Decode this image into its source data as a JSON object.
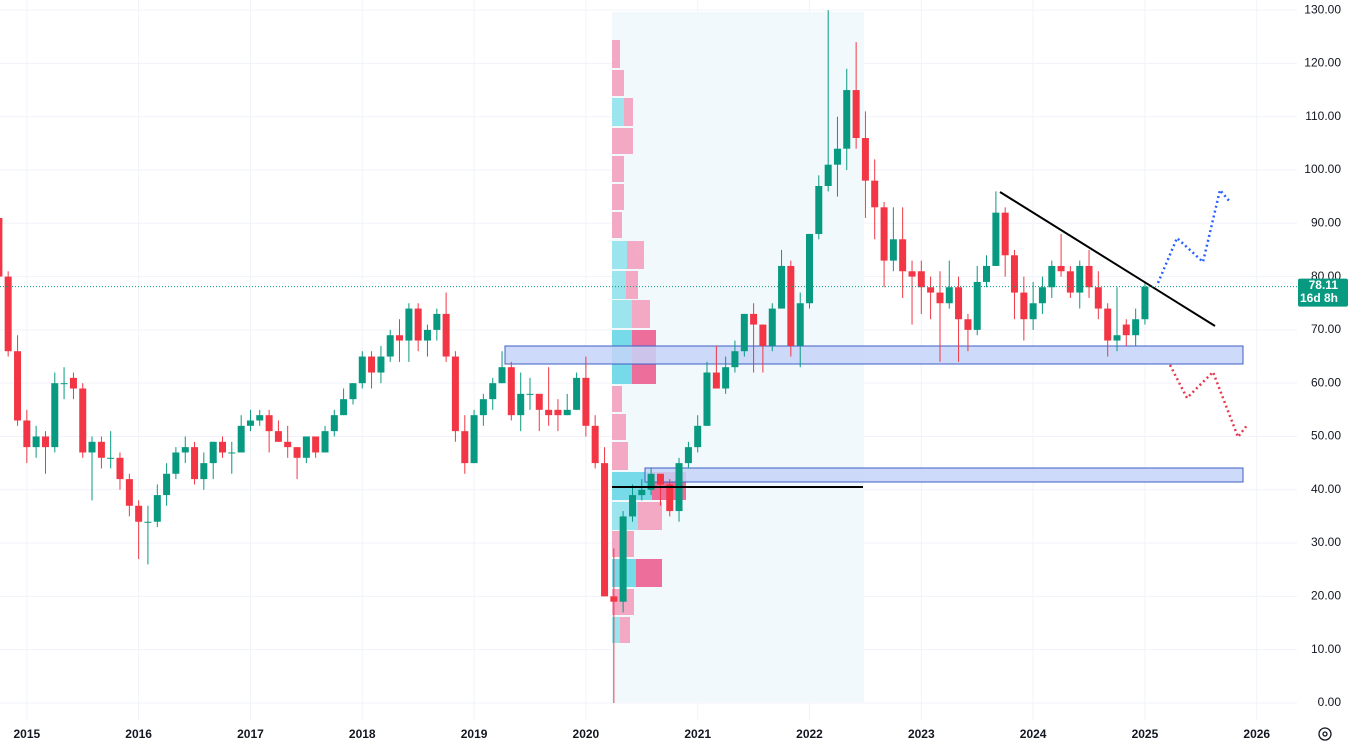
{
  "chart_data": {
    "type": "candlestick",
    "x": [
      2014.75,
      2014.833,
      2014.917,
      2015,
      2015.083,
      2015.167,
      2015.25,
      2015.333,
      2015.417,
      2015.5,
      2015.583,
      2015.667,
      2015.75,
      2015.833,
      2015.917,
      2016,
      2016.083,
      2016.167,
      2016.25,
      2016.333,
      2016.417,
      2016.5,
      2016.583,
      2016.667,
      2016.75,
      2016.833,
      2016.917,
      2017,
      2017.083,
      2017.167,
      2017.25,
      2017.333,
      2017.417,
      2017.5,
      2017.583,
      2017.667,
      2017.75,
      2017.833,
      2017.917,
      2018,
      2018.083,
      2018.167,
      2018.25,
      2018.333,
      2018.417,
      2018.5,
      2018.583,
      2018.667,
      2018.75,
      2018.833,
      2018.917,
      2019,
      2019.083,
      2019.167,
      2019.25,
      2019.333,
      2019.417,
      2019.5,
      2019.583,
      2019.667,
      2019.75,
      2019.833,
      2019.917,
      2020,
      2020.083,
      2020.167,
      2020.25,
      2020.333,
      2020.417,
      2020.5,
      2020.583,
      2020.667,
      2020.75,
      2020.833,
      2020.917,
      2021,
      2021.083,
      2021.167,
      2021.25,
      2021.333,
      2021.417,
      2021.5,
      2021.583,
      2021.667,
      2021.75,
      2021.833,
      2021.917,
      2022,
      2022.083,
      2022.167,
      2022.25,
      2022.333,
      2022.417,
      2022.5,
      2022.583,
      2022.667,
      2022.75,
      2022.833,
      2022.917,
      2023,
      2023.083,
      2023.167,
      2023.25,
      2023.333,
      2023.417,
      2023.5,
      2023.583,
      2023.667,
      2023.75,
      2023.833,
      2023.917,
      2024,
      2024.083,
      2024.167,
      2024.25,
      2024.333,
      2024.417,
      2024.5,
      2024.583,
      2024.667,
      2024.75,
      2024.833,
      2024.917,
      2025
    ],
    "open": [
      91,
      80,
      66,
      53,
      48,
      50,
      48,
      60,
      61,
      59,
      47,
      49,
      46,
      46,
      42,
      37,
      34,
      34,
      39,
      43,
      47,
      48,
      42,
      45,
      49,
      47,
      47,
      52,
      53,
      54,
      51,
      49,
      48,
      46,
      50,
      47,
      51,
      54,
      57,
      60,
      65,
      62,
      65,
      69,
      68,
      74,
      68,
      70,
      73,
      65,
      51,
      45,
      54,
      57,
      60,
      63,
      54,
      58,
      58,
      55,
      55,
      54,
      55,
      61,
      52,
      45,
      20,
      19,
      35,
      39,
      40,
      43,
      41,
      36,
      45,
      48,
      52,
      62,
      59,
      63,
      66,
      73,
      71,
      67,
      74,
      82,
      67,
      75,
      88,
      97,
      101,
      104,
      115,
      106,
      98,
      93,
      83,
      87,
      81,
      81,
      78,
      77,
      75,
      78,
      72,
      70,
      79,
      82,
      92,
      84,
      77,
      72,
      75,
      78,
      82,
      81,
      77,
      82,
      78,
      74,
      68,
      71,
      69,
      72
    ],
    "high": [
      92,
      81,
      69,
      55,
      52,
      51,
      62,
      63,
      62,
      60,
      50,
      50,
      51,
      47,
      43,
      38,
      37,
      41,
      45,
      48,
      50,
      49,
      47,
      49,
      50,
      49,
      54,
      55,
      55,
      55,
      53,
      52,
      48,
      50,
      50,
      52,
      55,
      59,
      60,
      66,
      66,
      67,
      70,
      72,
      75,
      75,
      71,
      74,
      77,
      66,
      54,
      55,
      58,
      61,
      66,
      64,
      62,
      61,
      58,
      63,
      57,
      58,
      62,
      65,
      54,
      48,
      29,
      36,
      41,
      42,
      44,
      43,
      42,
      46,
      49,
      54,
      64,
      67,
      65,
      68,
      73,
      75,
      71,
      75,
      85,
      83,
      77,
      88,
      99,
      130,
      110,
      119,
      124,
      111,
      102,
      94,
      93,
      93,
      83,
      83,
      80,
      81,
      83,
      80,
      73,
      82,
      84,
      96,
      93,
      85,
      80,
      79,
      80,
      83,
      88,
      82,
      83,
      85,
      81,
      75,
      78,
      72,
      74,
      79
    ],
    "low": [
      79,
      65,
      52,
      45,
      46,
      43,
      47,
      57,
      57,
      46,
      38,
      44,
      44,
      40,
      35,
      27,
      26,
      33,
      37,
      42,
      45,
      41,
      40,
      42,
      46,
      43,
      47,
      51,
      52,
      47,
      49,
      46,
      42,
      45,
      46,
      47,
      50,
      54,
      56,
      59,
      59,
      60,
      64,
      64,
      64,
      66,
      65,
      68,
      64,
      49,
      43,
      45,
      52,
      55,
      60,
      53,
      51,
      55,
      51,
      52,
      51,
      54,
      55,
      50,
      44,
      20,
      0,
      17,
      34,
      38,
      39,
      37,
      35,
      34,
      44,
      47,
      52,
      59,
      58,
      62,
      65,
      62,
      62,
      66,
      74,
      65,
      63,
      74,
      87,
      96,
      95,
      100,
      104,
      91,
      87,
      78,
      81,
      76,
      71,
      73,
      72,
      64,
      74,
      64,
      66,
      69,
      78,
      82,
      80,
      72,
      68,
      70,
      73,
      76,
      80,
      76,
      74,
      76,
      72,
      65,
      66,
      67,
      67,
      71
    ],
    "close": [
      80,
      66,
      53,
      48,
      50,
      48,
      60,
      60,
      59,
      47,
      49,
      46,
      46,
      42,
      37,
      34,
      34,
      39,
      43,
      47,
      48,
      42,
      45,
      49,
      47,
      47,
      52,
      53,
      54,
      51,
      49,
      48,
      46,
      50,
      47,
      51,
      54,
      57,
      60,
      65,
      62,
      65,
      69,
      68,
      74,
      68,
      70,
      73,
      65,
      51,
      45,
      54,
      57,
      60,
      63,
      54,
      58,
      58,
      55,
      54,
      54,
      55,
      61,
      52,
      45,
      20,
      19,
      35,
      39,
      40,
      43,
      41,
      36,
      45,
      48,
      52,
      62,
      59,
      63,
      66,
      73,
      71,
      67,
      74,
      82,
      67,
      75,
      88,
      97,
      101,
      104,
      115,
      106,
      98,
      93,
      83,
      87,
      81,
      80,
      78,
      77,
      75,
      78,
      72,
      70,
      79,
      82,
      92,
      84,
      77,
      72,
      75,
      78,
      82,
      81,
      77,
      82,
      78,
      74,
      68,
      69,
      69,
      72,
      78.11
    ],
    "up_color": "#089981",
    "down_color": "#f23645",
    "last_price": 78.11,
    "countdown": "16d 8h",
    "xlim": [
      2014.76,
      2026.36
    ],
    "xticks": [
      2015,
      2016,
      2017,
      2018,
      2019,
      2020,
      2021,
      2022,
      2023,
      2024,
      2025,
      2026
    ],
    "ylim": [
      -3.2,
      131.9
    ],
    "yticks": [
      {
        "value": 0,
        "label": "0.00"
      },
      {
        "value": 10,
        "label": "10.00"
      },
      {
        "value": 20,
        "label": "20.00"
      },
      {
        "value": 30,
        "label": "30.00"
      },
      {
        "value": 40,
        "label": "40.00"
      },
      {
        "value": 50,
        "label": "50.00"
      },
      {
        "value": 60,
        "label": "60.00"
      },
      {
        "value": 70,
        "label": "70.00"
      },
      {
        "value": 80,
        "label": "80.00"
      },
      {
        "value": 90,
        "label": "90.00"
      },
      {
        "value": 100,
        "label": "100.00"
      },
      {
        "value": 110,
        "label": "110.00"
      },
      {
        "value": 120,
        "label": "120.00"
      },
      {
        "value": 130,
        "label": "130.00"
      }
    ],
    "grid": true
  }
}
